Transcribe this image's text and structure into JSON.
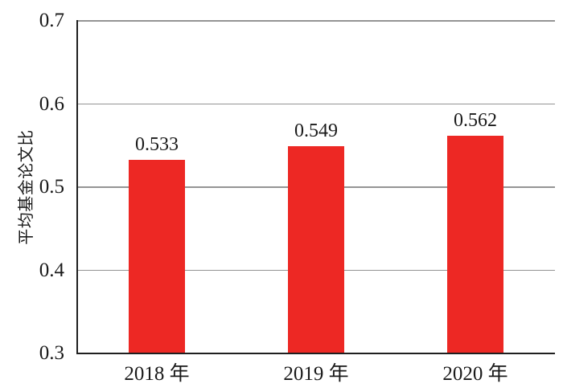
{
  "chart_data": {
    "type": "bar",
    "title": "",
    "xlabel": "",
    "ylabel": "平均基金论文比",
    "categories": [
      "2018 年",
      "2019 年",
      "2020 年"
    ],
    "values": [
      0.533,
      0.549,
      0.562
    ],
    "bar_value_labels": [
      "0.533",
      "0.549",
      "0.562"
    ],
    "ylim": [
      0.3,
      0.7
    ],
    "yticks": [
      0.3,
      0.4,
      0.5,
      0.6,
      0.7
    ],
    "ytick_labels": [
      "0.3",
      "0.4",
      "0.5",
      "0.6",
      "0.7"
    ],
    "grid": "horizontal gridlines at y ticks, behind bars",
    "legend": "none",
    "colors": {
      "bar": "#ED2824",
      "gridline": "#949494",
      "axis": "#1F1F1F",
      "text": "#1A1A1A",
      "background": "#FFFFFF"
    }
  }
}
